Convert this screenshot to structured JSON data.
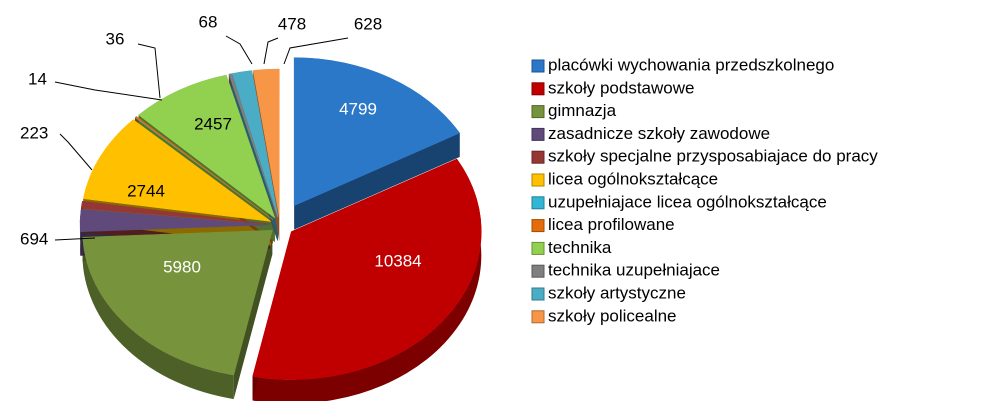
{
  "chart_data": {
    "type": "pie",
    "categories": [
      "placówki wychowania przedszkolnego",
      "szkoły podstawowe",
      "gimnazja",
      "zasadnicze szkoły zawodowe",
      "szkoły specjalne przysposabiajace do pracy",
      "licea ogólnokształcące",
      "uzupełniajace licea ogólnokształcące",
      "licea profilowane",
      "technika",
      "technika uzupełniajace",
      "szkoły artystyczne",
      "szkoły policealne"
    ],
    "values": [
      4799,
      10384,
      5980,
      694,
      223,
      2744,
      14,
      36,
      2457,
      68,
      478,
      628
    ],
    "colors": [
      "#2b78c9",
      "#c00000",
      "#77933c",
      "#604a7b",
      "#953735",
      "#ffc000",
      "#31b6d6",
      "#e46c0a",
      "#92d050",
      "#7f7f7f",
      "#4bacc6",
      "#f79646"
    ],
    "legend": "right"
  }
}
